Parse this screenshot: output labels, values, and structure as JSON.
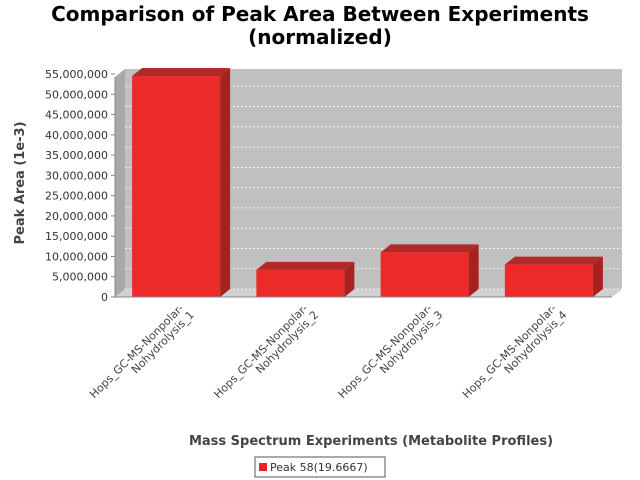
{
  "chart_data": {
    "type": "bar",
    "title_lines": [
      "Comparison of Peak Area Between Experiments",
      "(normalized)"
    ],
    "xlabel": "Mass Spectrum Experiments (Metabolite Profiles)",
    "ylabel": "Peak Area (1e-3)",
    "categories": [
      [
        "Hops_GC-MS-Nonpolar-",
        "Nohydrolysis_1"
      ],
      [
        "Hops_GC-MS-Nonpolar-",
        "Nohydrolysis_2"
      ],
      [
        "Hops_GC-MS-Nonpolar-",
        "Nohydrolysis_3"
      ],
      [
        "Hops_GC-MS-Nonpolar-",
        "Nohydrolysis_4"
      ]
    ],
    "series": [
      {
        "name": "Peak 58(19.6667)",
        "values": [
          54500000,
          6700000,
          11000000,
          8000000
        ],
        "color": "#ee2222"
      }
    ],
    "yticks": [
      "0",
      "5,000,000",
      "10,000,000",
      "15,000,000",
      "20,000,000",
      "25,000,000",
      "30,000,000",
      "35,000,000",
      "40,000,000",
      "45,000,000",
      "50,000,000",
      "55,000,000"
    ],
    "ylim": [
      0,
      55000000
    ],
    "grid": true,
    "legend_position": "bottom",
    "plot_background": "#c0c0c0"
  }
}
